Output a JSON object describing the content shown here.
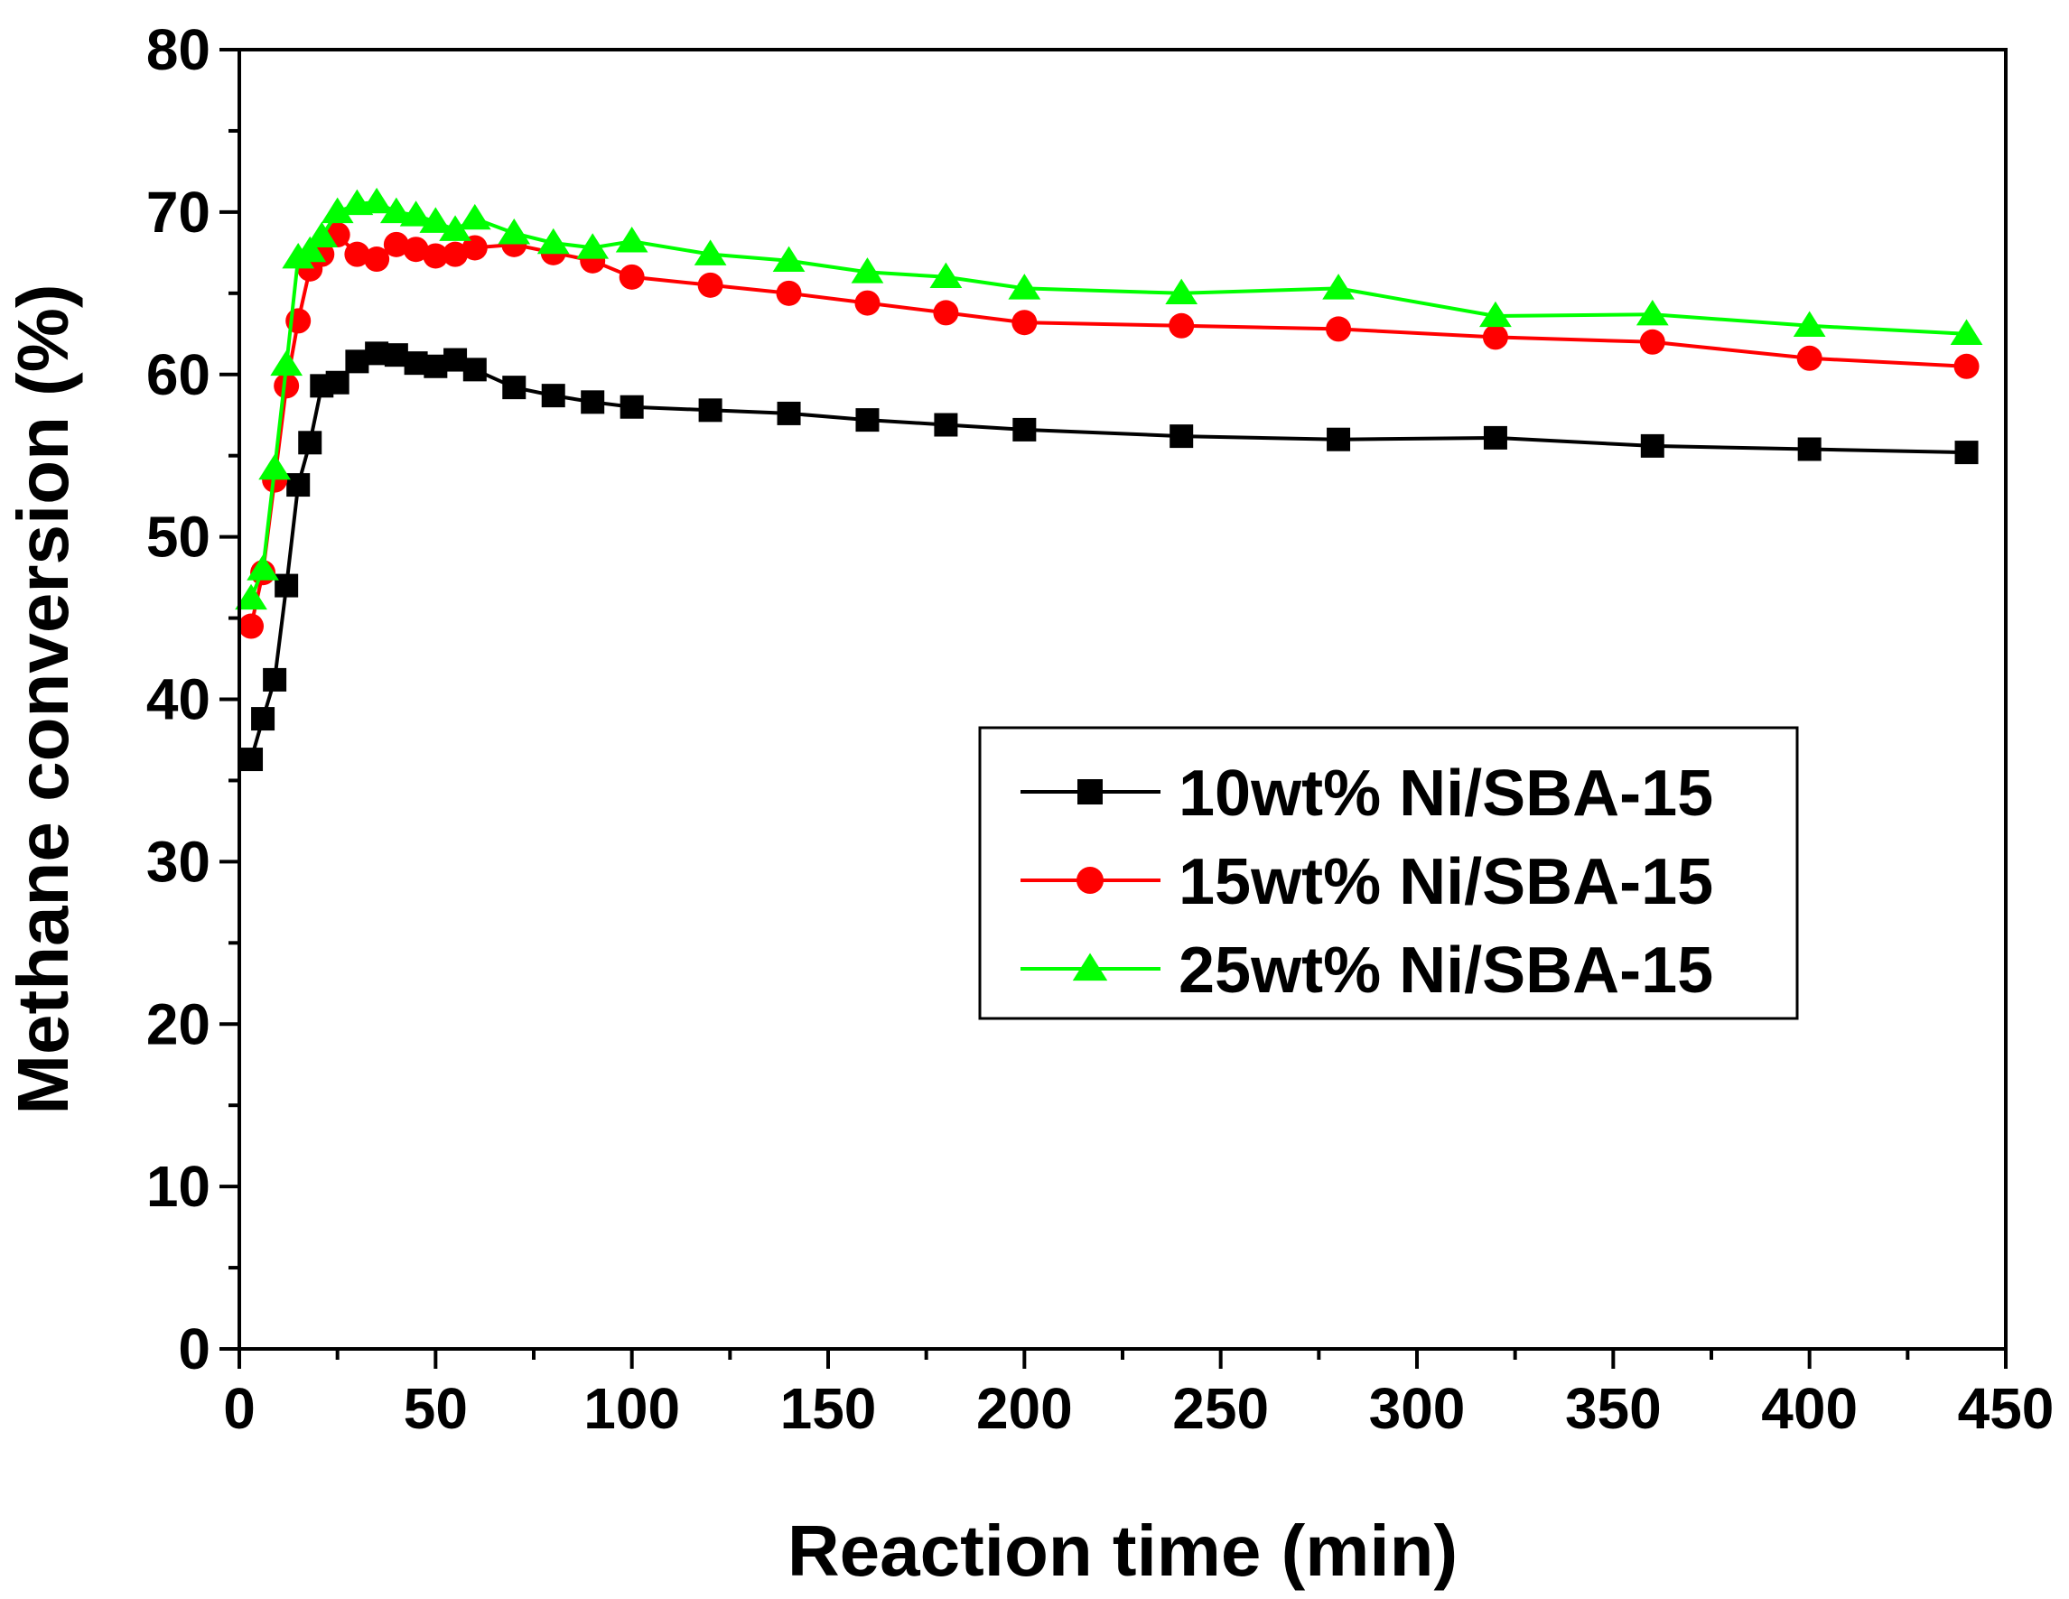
{
  "chart_data": {
    "type": "line",
    "title": "",
    "xlabel": "Reaction time (min)",
    "ylabel": "Methane conversion (%)",
    "xlim": [
      0,
      450
    ],
    "ylim": [
      0,
      80
    ],
    "xticks": [
      0,
      50,
      100,
      150,
      200,
      250,
      300,
      350,
      400,
      450
    ],
    "yticks": [
      0,
      10,
      20,
      30,
      40,
      50,
      60,
      70,
      80
    ],
    "xtick_labels": [
      "0",
      "50",
      "100",
      "150",
      "200",
      "250",
      "300",
      "350",
      "400",
      "450"
    ],
    "ytick_labels": [
      "0",
      "10",
      "20",
      "30",
      "40",
      "50",
      "60",
      "70",
      "80"
    ],
    "grid": false,
    "legend_position": "center-right",
    "series": [
      {
        "name": "10wt% Ni/SBA-15",
        "color": "#000000",
        "marker": "square",
        "x": [
          3,
          6,
          9,
          12,
          15,
          18,
          21,
          25,
          30,
          35,
          40,
          45,
          50,
          55,
          60,
          70,
          80,
          90,
          100,
          120,
          140,
          160,
          180,
          200,
          240,
          280,
          320,
          360,
          400,
          440
        ],
        "y": [
          36.3,
          38.8,
          41.2,
          47.0,
          53.2,
          55.8,
          59.3,
          59.5,
          60.8,
          61.3,
          61.2,
          60.7,
          60.5,
          60.9,
          60.3,
          59.2,
          58.7,
          58.3,
          58.0,
          57.8,
          57.6,
          57.2,
          56.9,
          56.6,
          56.2,
          56.0,
          56.1,
          55.6,
          55.4,
          55.2
        ]
      },
      {
        "name": "15wt% Ni/SBA-15",
        "color": "#ff0000",
        "marker": "circle",
        "x": [
          3,
          6,
          9,
          12,
          15,
          18,
          21,
          25,
          30,
          35,
          40,
          45,
          50,
          55,
          60,
          70,
          80,
          90,
          100,
          120,
          140,
          160,
          180,
          200,
          240,
          280,
          320,
          360,
          400,
          440
        ],
        "y": [
          44.5,
          47.8,
          53.5,
          59.3,
          63.3,
          66.5,
          67.4,
          68.6,
          67.4,
          67.1,
          68.0,
          67.7,
          67.3,
          67.4,
          67.8,
          68.0,
          67.5,
          67.0,
          66.0,
          65.5,
          65.0,
          64.4,
          63.8,
          63.2,
          63.0,
          62.8,
          62.3,
          62.0,
          61.0,
          60.5
        ]
      },
      {
        "name": "25wt% Ni/SBA-15",
        "color": "#00ff00",
        "marker": "triangle",
        "x": [
          3,
          6,
          9,
          12,
          15,
          18,
          21,
          25,
          30,
          35,
          40,
          45,
          50,
          55,
          60,
          70,
          80,
          90,
          100,
          120,
          140,
          160,
          180,
          200,
          240,
          280,
          320,
          360,
          400,
          440
        ],
        "y": [
          46.2,
          48.0,
          54.2,
          60.6,
          67.2,
          67.6,
          68.5,
          70.0,
          70.5,
          70.6,
          70.0,
          69.8,
          69.4,
          68.9,
          69.6,
          68.7,
          68.1,
          67.8,
          68.2,
          67.4,
          67.0,
          66.3,
          66.0,
          65.3,
          65.0,
          65.3,
          63.6,
          63.7,
          63.0,
          62.5
        ]
      }
    ]
  }
}
